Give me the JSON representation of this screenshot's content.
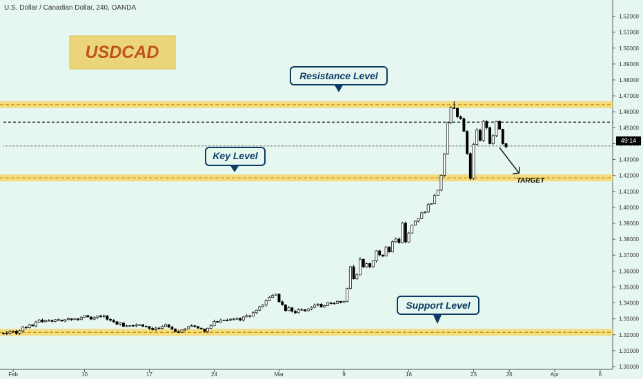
{
  "header": {
    "symbol_title": "U.S. Dollar / Canadian Dollar, 240, OANDA"
  },
  "current_price_label": "49:14",
  "colors": {
    "background": "#e6f7ef",
    "zone_fill": "#f5d76e",
    "zone_line": "#c99a00",
    "up_candle": "#ffffff",
    "down_candle": "#000000",
    "label_text": "#0d3b66"
  },
  "annotations": {
    "ticker_box": "USDCAD",
    "resistance": "Resistance Level",
    "key": "Key Level",
    "support": "Support Level",
    "target": "TARGET"
  },
  "chart_data": {
    "type": "candlestick",
    "title": "U.S. Dollar / Canadian Dollar, 240, OANDA",
    "ylim": [
      1.3,
      1.525
    ],
    "y_ticks": [
      "1.52000",
      "1.51000",
      "1.50000",
      "1.49000",
      "1.48000",
      "1.47000",
      "1.46000",
      "1.45000",
      "1.44000",
      "1.43000",
      "1.42000",
      "1.41000",
      "1.40000",
      "1.39000",
      "1.38000",
      "1.37000",
      "1.36000",
      "1.35000",
      "1.34000",
      "1.33000",
      "1.32000",
      "1.31000",
      "1.30000"
    ],
    "x_ticks": [
      {
        "label": "Feb",
        "idx": 3
      },
      {
        "label": "10",
        "idx": 25
      },
      {
        "label": "17",
        "idx": 45
      },
      {
        "label": "24",
        "idx": 65
      },
      {
        "label": "Mar",
        "idx": 85
      },
      {
        "label": "9",
        "idx": 105
      },
      {
        "label": "16",
        "idx": 125
      },
      {
        "label": "23",
        "idx": 145
      },
      {
        "label": "26",
        "idx": 156
      },
      {
        "label": "Apr",
        "idx": 170
      },
      {
        "label": "6",
        "idx": 184
      }
    ],
    "zones": [
      {
        "name": "resistance",
        "value": 1.4645
      },
      {
        "name": "key",
        "value": 1.4185
      },
      {
        "name": "support",
        "value": 1.3215
      }
    ],
    "dashed_lines": [
      {
        "value": 1.4535,
        "from_idx": 0,
        "to_idx": 183
      },
      {
        "value": 1.4385,
        "from_idx": 0,
        "to_idx": 183
      }
    ],
    "target_arrow": {
      "from_idx": 153,
      "from_value": 1.4375,
      "to_idx": 159,
      "to_value": 1.4215
    },
    "candles": [
      [
        1.3207,
        1.321,
        1.3199,
        1.3216
      ],
      [
        1.321,
        1.3208,
        1.3198,
        1.3222
      ],
      [
        1.3208,
        1.3218,
        1.3201,
        1.3229
      ],
      [
        1.3218,
        1.3223,
        1.3212,
        1.3228
      ],
      [
        1.3223,
        1.3208,
        1.3199,
        1.3231
      ],
      [
        1.3208,
        1.3225,
        1.3199,
        1.3232
      ],
      [
        1.3225,
        1.3248,
        1.3216,
        1.3256
      ],
      [
        1.3248,
        1.3244,
        1.3234,
        1.3252
      ],
      [
        1.3244,
        1.3263,
        1.324,
        1.3268
      ],
      [
        1.3263,
        1.3255,
        1.3253,
        1.3264
      ],
      [
        1.3255,
        1.3278,
        1.3248,
        1.3287
      ],
      [
        1.3278,
        1.3293,
        1.3275,
        1.3299
      ],
      [
        1.3293,
        1.3282,
        1.3274,
        1.3302
      ],
      [
        1.3282,
        1.329,
        1.3276,
        1.3293
      ],
      [
        1.329,
        1.329,
        1.3283,
        1.3298
      ],
      [
        1.329,
        1.3284,
        1.3276,
        1.3295
      ],
      [
        1.3284,
        1.3295,
        1.3279,
        1.3298
      ],
      [
        1.3295,
        1.3293,
        1.3288,
        1.3301
      ],
      [
        1.3293,
        1.3286,
        1.3283,
        1.3292
      ],
      [
        1.3286,
        1.3295,
        1.3277,
        1.3296
      ],
      [
        1.3295,
        1.3301,
        1.329,
        1.3309
      ],
      [
        1.3301,
        1.3295,
        1.3286,
        1.3303
      ],
      [
        1.3295,
        1.33,
        1.3294,
        1.3302
      ],
      [
        1.33,
        1.3295,
        1.3286,
        1.3305
      ],
      [
        1.3295,
        1.3309,
        1.3292,
        1.3316
      ],
      [
        1.3309,
        1.3321,
        1.3307,
        1.3322
      ],
      [
        1.3321,
        1.3312,
        1.3307,
        1.3321
      ],
      [
        1.3312,
        1.3298,
        1.3293,
        1.3315
      ],
      [
        1.3298,
        1.3308,
        1.3291,
        1.3317
      ],
      [
        1.3308,
        1.3318,
        1.33,
        1.3321
      ],
      [
        1.3318,
        1.3315,
        1.3306,
        1.3326
      ],
      [
        1.3315,
        1.3319,
        1.3307,
        1.3327
      ],
      [
        1.3319,
        1.3297,
        1.3288,
        1.3324
      ],
      [
        1.3297,
        1.3291,
        1.3282,
        1.3305
      ],
      [
        1.3291,
        1.3282,
        1.3273,
        1.3298
      ],
      [
        1.3282,
        1.3266,
        1.3262,
        1.3285
      ],
      [
        1.3266,
        1.3274,
        1.3257,
        1.3279
      ],
      [
        1.3274,
        1.3253,
        1.3248,
        1.3278
      ],
      [
        1.3253,
        1.3256,
        1.325,
        1.3262
      ],
      [
        1.3256,
        1.3258,
        1.3251,
        1.3261
      ],
      [
        1.3258,
        1.3256,
        1.3251,
        1.3265
      ],
      [
        1.3256,
        1.3262,
        1.3247,
        1.3271
      ],
      [
        1.3262,
        1.3263,
        1.326,
        1.3267
      ],
      [
        1.3263,
        1.3253,
        1.3248,
        1.3268
      ],
      [
        1.3253,
        1.3252,
        1.3249,
        1.3259
      ],
      [
        1.3252,
        1.324,
        1.3231,
        1.3249
      ],
      [
        1.324,
        1.3232,
        1.3226,
        1.3251
      ],
      [
        1.3232,
        1.3242,
        1.3223,
        1.325
      ],
      [
        1.3242,
        1.3241,
        1.3235,
        1.325
      ],
      [
        1.3241,
        1.3252,
        1.3235,
        1.3259
      ],
      [
        1.3252,
        1.3263,
        1.3252,
        1.3271
      ],
      [
        1.3263,
        1.3248,
        1.3243,
        1.3268
      ],
      [
        1.3248,
        1.3236,
        1.3229,
        1.3256
      ],
      [
        1.3236,
        1.3219,
        1.3216,
        1.324
      ],
      [
        1.3219,
        1.3216,
        1.3211,
        1.3229
      ],
      [
        1.3216,
        1.323,
        1.3212,
        1.3232
      ],
      [
        1.323,
        1.3237,
        1.3222,
        1.3242
      ],
      [
        1.3237,
        1.3251,
        1.3234,
        1.3255
      ],
      [
        1.3251,
        1.3257,
        1.3249,
        1.3265
      ],
      [
        1.3257,
        1.3252,
        1.3244,
        1.326
      ],
      [
        1.3252,
        1.3242,
        1.3237,
        1.325
      ],
      [
        1.3242,
        1.3237,
        1.3233,
        1.324
      ],
      [
        1.3237,
        1.322,
        1.3214,
        1.3237
      ],
      [
        1.322,
        1.3241,
        1.3208,
        1.3245
      ],
      [
        1.3241,
        1.3256,
        1.3237,
        1.3265
      ],
      [
        1.3256,
        1.3284,
        1.3255,
        1.3295
      ],
      [
        1.3284,
        1.3279,
        1.3275,
        1.3284
      ],
      [
        1.3279,
        1.3292,
        1.3275,
        1.3301
      ],
      [
        1.3292,
        1.3292,
        1.3287,
        1.3295
      ],
      [
        1.3292,
        1.3291,
        1.3284,
        1.3301
      ],
      [
        1.3291,
        1.3298,
        1.3286,
        1.3304
      ],
      [
        1.3298,
        1.3298,
        1.3291,
        1.3307
      ],
      [
        1.3298,
        1.3303,
        1.3292,
        1.3308
      ],
      [
        1.3303,
        1.3292,
        1.3284,
        1.3308
      ],
      [
        1.3292,
        1.3312,
        1.3284,
        1.3318
      ],
      [
        1.3312,
        1.332,
        1.331,
        1.3328
      ],
      [
        1.332,
        1.3316,
        1.3306,
        1.3321
      ],
      [
        1.3316,
        1.3338,
        1.3315,
        1.3348
      ],
      [
        1.3338,
        1.3354,
        1.3331,
        1.3357
      ],
      [
        1.3354,
        1.3376,
        1.3348,
        1.3382
      ],
      [
        1.3376,
        1.3386,
        1.3371,
        1.3392
      ],
      [
        1.3386,
        1.3414,
        1.3377,
        1.3422
      ],
      [
        1.3414,
        1.3435,
        1.3412,
        1.3443
      ],
      [
        1.3435,
        1.3448,
        1.3431,
        1.3456
      ],
      [
        1.3448,
        1.3455,
        1.3446,
        1.3458
      ],
      [
        1.3455,
        1.3407,
        1.3401,
        1.346
      ],
      [
        1.3407,
        1.3388,
        1.3383,
        1.3415
      ],
      [
        1.3388,
        1.3351,
        1.3345,
        1.3391
      ],
      [
        1.3351,
        1.337,
        1.3349,
        1.338
      ],
      [
        1.337,
        1.3347,
        1.3339,
        1.3371
      ],
      [
        1.3347,
        1.3338,
        1.333,
        1.3356
      ],
      [
        1.3338,
        1.3358,
        1.3334,
        1.3366
      ],
      [
        1.3358,
        1.3358,
        1.3354,
        1.3368
      ],
      [
        1.3358,
        1.335,
        1.3343,
        1.336
      ],
      [
        1.335,
        1.3362,
        1.3347,
        1.3367
      ],
      [
        1.3362,
        1.3372,
        1.3354,
        1.3378
      ],
      [
        1.3372,
        1.3386,
        1.3366,
        1.3396
      ],
      [
        1.3386,
        1.3392,
        1.3379,
        1.3398
      ],
      [
        1.3392,
        1.3374,
        1.337,
        1.3401
      ],
      [
        1.3374,
        1.3383,
        1.337,
        1.3388
      ],
      [
        1.3383,
        1.34,
        1.3382,
        1.3405
      ],
      [
        1.34,
        1.3398,
        1.3389,
        1.3406
      ],
      [
        1.3398,
        1.3397,
        1.339,
        1.3406
      ],
      [
        1.3397,
        1.341,
        1.3395,
        1.3415
      ],
      [
        1.341,
        1.3402,
        1.3397,
        1.3412
      ],
      [
        1.3402,
        1.341,
        1.3399,
        1.3414
      ],
      [
        1.341,
        1.349,
        1.3405,
        1.3495
      ],
      [
        1.349,
        1.3627,
        1.3485,
        1.3632
      ],
      [
        1.3627,
        1.3551,
        1.3546,
        1.3638
      ],
      [
        1.3551,
        1.3576,
        1.3544,
        1.3587
      ],
      [
        1.3576,
        1.3674,
        1.3575,
        1.3687
      ],
      [
        1.3674,
        1.3626,
        1.3619,
        1.3678
      ],
      [
        1.3626,
        1.3647,
        1.3621,
        1.3654
      ],
      [
        1.3647,
        1.3627,
        1.3617,
        1.3651
      ],
      [
        1.3627,
        1.3664,
        1.362,
        1.3666
      ],
      [
        1.3664,
        1.3727,
        1.3655,
        1.373
      ],
      [
        1.3727,
        1.3701,
        1.3692,
        1.3733
      ],
      [
        1.3701,
        1.3694,
        1.3687,
        1.3703
      ],
      [
        1.3694,
        1.3751,
        1.3692,
        1.3758
      ],
      [
        1.3751,
        1.372,
        1.3715,
        1.3755
      ],
      [
        1.372,
        1.3784,
        1.3716,
        1.3793
      ],
      [
        1.3784,
        1.3801,
        1.3779,
        1.381
      ],
      [
        1.3801,
        1.3778,
        1.3772,
        1.3812
      ],
      [
        1.3778,
        1.3901,
        1.3774,
        1.3909
      ],
      [
        1.3901,
        1.3782,
        1.3775,
        1.3911
      ],
      [
        1.3782,
        1.3839,
        1.3778,
        1.3846
      ],
      [
        1.3839,
        1.3888,
        1.3836,
        1.3892
      ],
      [
        1.3888,
        1.3913,
        1.3886,
        1.3917
      ],
      [
        1.3913,
        1.3929,
        1.3907,
        1.3931
      ],
      [
        1.3929,
        1.3966,
        1.3925,
        1.3971
      ],
      [
        1.3966,
        1.397,
        1.3962,
        1.3977
      ],
      [
        1.397,
        1.4019,
        1.3966,
        1.4026
      ],
      [
        1.4019,
        1.4024,
        1.4018,
        1.4026
      ],
      [
        1.4024,
        1.4075,
        1.4022,
        1.4085
      ],
      [
        1.4075,
        1.4108,
        1.4073,
        1.4111
      ],
      [
        1.4108,
        1.4201,
        1.4101,
        1.4207
      ],
      [
        1.4201,
        1.4335,
        1.419,
        1.4341
      ],
      [
        1.4335,
        1.4532,
        1.433,
        1.4537
      ],
      [
        1.4532,
        1.4625,
        1.4522,
        1.4635
      ],
      [
        1.4625,
        1.4621,
        1.4619,
        1.4667
      ],
      [
        1.4621,
        1.4569,
        1.4559,
        1.463
      ],
      [
        1.4569,
        1.4557,
        1.455,
        1.4577
      ],
      [
        1.4557,
        1.4477,
        1.4476,
        1.4564
      ],
      [
        1.4477,
        1.4338,
        1.4329,
        1.4484
      ],
      [
        1.4338,
        1.4181,
        1.417,
        1.4347
      ],
      [
        1.4181,
        1.4395,
        1.4173,
        1.4405
      ],
      [
        1.4395,
        1.4485,
        1.4389,
        1.4496
      ],
      [
        1.4485,
        1.442,
        1.4414,
        1.4494
      ],
      [
        1.442,
        1.454,
        1.4412,
        1.4548
      ],
      [
        1.454,
        1.45,
        1.4488,
        1.4547
      ],
      [
        1.45,
        1.44,
        1.4396,
        1.4507
      ],
      [
        1.44,
        1.445,
        1.4393,
        1.4457
      ],
      [
        1.445,
        1.454,
        1.4441,
        1.4543
      ],
      [
        1.454,
        1.4491,
        1.4487,
        1.4546
      ],
      [
        1.4491,
        1.44,
        1.4392,
        1.4494
      ],
      [
        1.44,
        1.438,
        1.437,
        1.4404
      ]
    ]
  }
}
